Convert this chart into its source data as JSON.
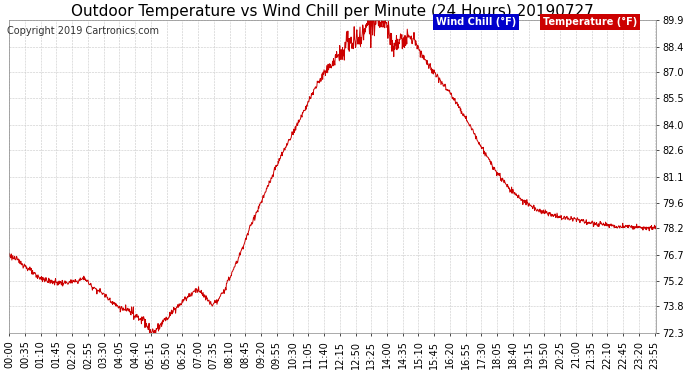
{
  "title": "Outdoor Temperature vs Wind Chill per Minute (24 Hours) 20190727",
  "copyright": "Copyright 2019 Cartronics.com",
  "ylim": [
    72.3,
    89.9
  ],
  "yticks": [
    72.3,
    73.8,
    75.2,
    76.7,
    78.2,
    79.6,
    81.1,
    82.6,
    84.0,
    85.5,
    87.0,
    88.4,
    89.9
  ],
  "legend_labels": [
    "Wind Chill (°F)",
    "Temperature (°F)"
  ],
  "legend_bg_colors": [
    "#0000cc",
    "#cc0000"
  ],
  "line_color": "#cc0000",
  "bg_color": "#ffffff",
  "grid_color": "#c8c8c8",
  "title_fontsize": 11,
  "copyright_fontsize": 7,
  "tick_fontsize": 7,
  "n_minutes": 1440,
  "x_tick_interval": 35,
  "x_tick_start": 0
}
